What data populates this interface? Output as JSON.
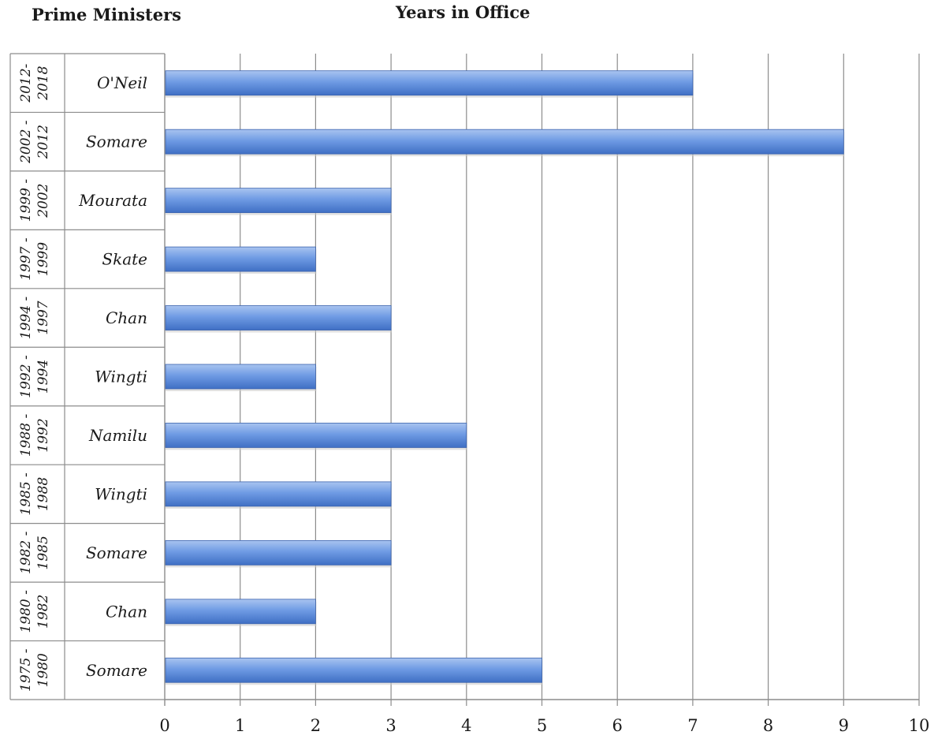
{
  "header": {
    "left_title": "Prime Ministers",
    "title": "Years in Office"
  },
  "colors": {
    "bar_top": "#a9c4f0",
    "bar_mid": "#6f9be4",
    "bar_bottom": "#3f6fc4",
    "grid": "#8c8c8c",
    "table_border": "#8c8c8c"
  },
  "chart_data": {
    "type": "bar",
    "orientation": "horizontal",
    "title": "Years in Office",
    "categories": [
      "O'Neil",
      "Somare",
      "Mourata",
      "Skate",
      "Chan",
      "Wingti",
      "Namilu",
      "Wingti",
      "Somare",
      "Chan",
      "Somare"
    ],
    "terms": [
      [
        "2012-",
        "2018"
      ],
      [
        "2002 -",
        "2012"
      ],
      [
        "1999 -",
        "2002"
      ],
      [
        "1997 -",
        "1999"
      ],
      [
        "1994 -",
        "1997"
      ],
      [
        "1992 -",
        "1994"
      ],
      [
        "1988 -",
        "1992"
      ],
      [
        "1985 -",
        "1988"
      ],
      [
        "1982 -",
        "1985"
      ],
      [
        "1980 -",
        "1982"
      ],
      [
        "1975 -",
        "1980"
      ]
    ],
    "values": [
      7,
      9,
      3,
      2,
      3,
      2,
      4,
      3,
      3,
      2,
      5
    ],
    "xlim": [
      0,
      10
    ],
    "xticks": [
      0,
      1,
      2,
      3,
      4,
      5,
      6,
      7,
      8,
      9,
      10
    ],
    "xlabel": "",
    "ylabel": "Prime Ministers",
    "grid": true,
    "legend": "none"
  }
}
